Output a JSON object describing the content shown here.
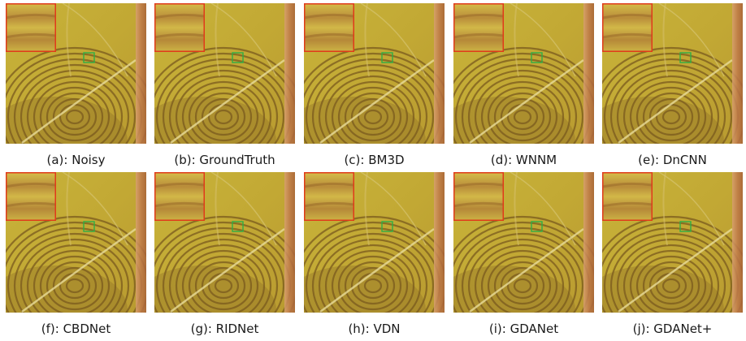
{
  "panels": [
    {
      "caption": "(a): Noisy"
    },
    {
      "caption": "(b): GroundTruth"
    },
    {
      "caption": "(c): BM3D"
    },
    {
      "caption": "(d): WNNM"
    },
    {
      "caption": "(e): DnCNN"
    },
    {
      "caption": "(f): CBDNet"
    },
    {
      "caption": "(g): RIDNet"
    },
    {
      "caption": "(h): VDN"
    },
    {
      "caption": "(i): GDANet"
    },
    {
      "caption": "(j): GDANet+"
    }
  ],
  "colors": {
    "background": "#c8b035",
    "ridge": "#7a5a1e",
    "inset_border": "#e03a1a",
    "roi_box": "#2fae45",
    "edge_bar": "#c98a5a"
  }
}
